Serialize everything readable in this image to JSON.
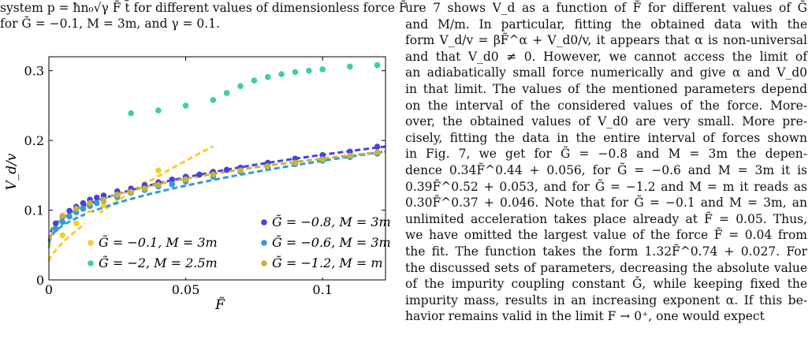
{
  "caption": {
    "line1": "system p = ħn₀√γ F̃ t̃ for different values of dimensionless force F̃",
    "line2": "for G̃ = −0.1, M = 3m, and γ = 0.1."
  },
  "body_lines": [
    "ure 7 shows V_d as a function of F̃ for different values of G̃",
    "and M/m. In particular, fitting the obtained data with the",
    "form V_d/v = βF̃^α + V_d0/v, it appears that α is non-universal",
    "and that V_d0 ≠ 0. However, we cannot access the limit of",
    "an adiabatically small force numerically and give α and V_d0",
    "in that limit. The values of the mentioned parameters depend",
    "on the interval of the considered values of the force. More-",
    "over, the obtained values of V_d0 are very small. More pre-",
    "cisely, fitting the data in the entire interval of forces shown",
    "in Fig. 7, we get for G̃ = −0.8 and M = 3m the depen-",
    "dence 0.34F̃^0.44 + 0.056, for G̃ = −0.6 and M = 3m it is",
    "0.39F̃^0.52 + 0.053, and for G̃ = −1.2 and M = m it reads as",
    "0.30F̃^0.37 + 0.046. Note that for G̃ = −0.1 and M = 3m, an",
    "unlimited acceleration takes place already at F̃ = 0.05. Thus,",
    "we have omitted the largest value of the force F̃ = 0.04 from",
    "the fit. The function takes the form 1.32F̃^0.74 + 0.027. For",
    "the discussed sets of parameters, decreasing the absolute value",
    "of the impurity coupling constant G̃, while keeping fixed the",
    "impurity mass, results in an increasing exponent α. If this be-",
    "havior remains valid in the limit F → 0⁺, one would expect"
  ],
  "chart_data": {
    "type": "scatter",
    "xlabel": "F̃",
    "ylabel": "V_d/v",
    "xlim": [
      0,
      0.123
    ],
    "ylim": [
      0,
      0.32
    ],
    "xticks": [
      0,
      0.05,
      0.1
    ],
    "xtick_labels": [
      "0",
      "0.05",
      "0.1"
    ],
    "yticks": [
      0,
      0.1,
      0.2,
      0.3
    ],
    "ytick_labels": [
      "0",
      "0.1",
      "0.2",
      "0.3"
    ],
    "grid": false,
    "legend_position": "lower-right",
    "series": [
      {
        "name": "G̃ = −0.1, M = 3m",
        "color": "#f5cd2e",
        "fit": {
          "a": 1.32,
          "b": 0.74,
          "c": 0.027,
          "x_from": 0,
          "x_to": 0.06
        },
        "points": [
          [
            0.005,
            0.064
          ],
          [
            0.01,
            0.081
          ],
          [
            0.015,
            0.096
          ],
          [
            0.02,
            0.107
          ],
          [
            0.025,
            0.118
          ],
          [
            0.03,
            0.127
          ],
          [
            0.035,
            0.137
          ],
          [
            0.04,
            0.157
          ]
        ]
      },
      {
        "name": "G̃ = −0.8, M = 3m",
        "color": "#4444dd",
        "fit": {
          "a": 0.34,
          "b": 0.44,
          "c": 0.056,
          "x_from": 0,
          "x_to": 0.123
        },
        "points": [
          [
            0.0025,
            0.081
          ],
          [
            0.005,
            0.091
          ],
          [
            0.0075,
            0.099
          ],
          [
            0.01,
            0.105
          ],
          [
            0.0125,
            0.11
          ],
          [
            0.015,
            0.115
          ],
          [
            0.0175,
            0.118
          ],
          [
            0.02,
            0.121
          ],
          [
            0.025,
            0.127
          ],
          [
            0.03,
            0.131
          ],
          [
            0.035,
            0.136
          ],
          [
            0.04,
            0.14
          ],
          [
            0.045,
            0.144
          ],
          [
            0.05,
            0.148
          ],
          [
            0.055,
            0.151
          ],
          [
            0.06,
            0.155
          ],
          [
            0.065,
            0.158
          ],
          [
            0.07,
            0.161
          ],
          [
            0.08,
            0.168
          ],
          [
            0.09,
            0.174
          ],
          [
            0.1,
            0.179
          ],
          [
            0.11,
            0.184
          ],
          [
            0.12,
            0.191
          ]
        ]
      },
      {
        "name": "G̃ = −2, M = 2.5m",
        "color": "#3fcf9a",
        "fit": null,
        "points": [
          [
            0.03,
            0.239
          ],
          [
            0.04,
            0.243
          ],
          [
            0.05,
            0.25
          ],
          [
            0.06,
            0.258
          ],
          [
            0.065,
            0.268
          ],
          [
            0.07,
            0.278
          ],
          [
            0.075,
            0.286
          ],
          [
            0.08,
            0.291
          ],
          [
            0.085,
            0.295
          ],
          [
            0.09,
            0.298
          ],
          [
            0.095,
            0.3
          ],
          [
            0.1,
            0.302
          ],
          [
            0.11,
            0.306
          ],
          [
            0.12,
            0.308
          ]
        ]
      },
      {
        "name": "G̃ = −0.6, M = 3m",
        "color": "#3399dd",
        "fit": {
          "a": 0.39,
          "b": 0.52,
          "c": 0.053,
          "x_from": 0,
          "x_to": 0.123
        },
        "points": [
          [
            0.0025,
            0.073
          ],
          [
            0.005,
            0.083
          ],
          [
            0.0075,
            0.091
          ],
          [
            0.01,
            0.097
          ],
          [
            0.0125,
            0.102
          ],
          [
            0.015,
            0.106
          ],
          [
            0.0175,
            0.11
          ],
          [
            0.02,
            0.114
          ],
          [
            0.025,
            0.119
          ],
          [
            0.03,
            0.125
          ],
          [
            0.035,
            0.129
          ],
          [
            0.04,
            0.134
          ],
          [
            0.045,
            0.137
          ],
          [
            0.05,
            0.141
          ],
          [
            0.06,
            0.148
          ],
          [
            0.07,
            0.155
          ],
          [
            0.08,
            0.161
          ],
          [
            0.09,
            0.166
          ],
          [
            0.1,
            0.171
          ],
          [
            0.11,
            0.176
          ],
          [
            0.12,
            0.181
          ]
        ]
      },
      {
        "name": "G̃ = −1.2, M = m",
        "color": "#c8b33a",
        "fit": {
          "a": 0.3,
          "b": 0.37,
          "c": 0.046,
          "x_from": 0,
          "x_to": 0.123
        },
        "points": [
          [
            0.005,
            0.092
          ],
          [
            0.01,
            0.102
          ],
          [
            0.015,
            0.11
          ],
          [
            0.02,
            0.115
          ],
          [
            0.025,
            0.122
          ],
          [
            0.03,
            0.126
          ],
          [
            0.035,
            0.131
          ],
          [
            0.04,
            0.136
          ],
          [
            0.05,
            0.144
          ],
          [
            0.06,
            0.151
          ],
          [
            0.07,
            0.157
          ],
          [
            0.08,
            0.163
          ],
          [
            0.09,
            0.168
          ],
          [
            0.1,
            0.173
          ],
          [
            0.11,
            0.178
          ],
          [
            0.12,
            0.183
          ]
        ]
      }
    ]
  }
}
